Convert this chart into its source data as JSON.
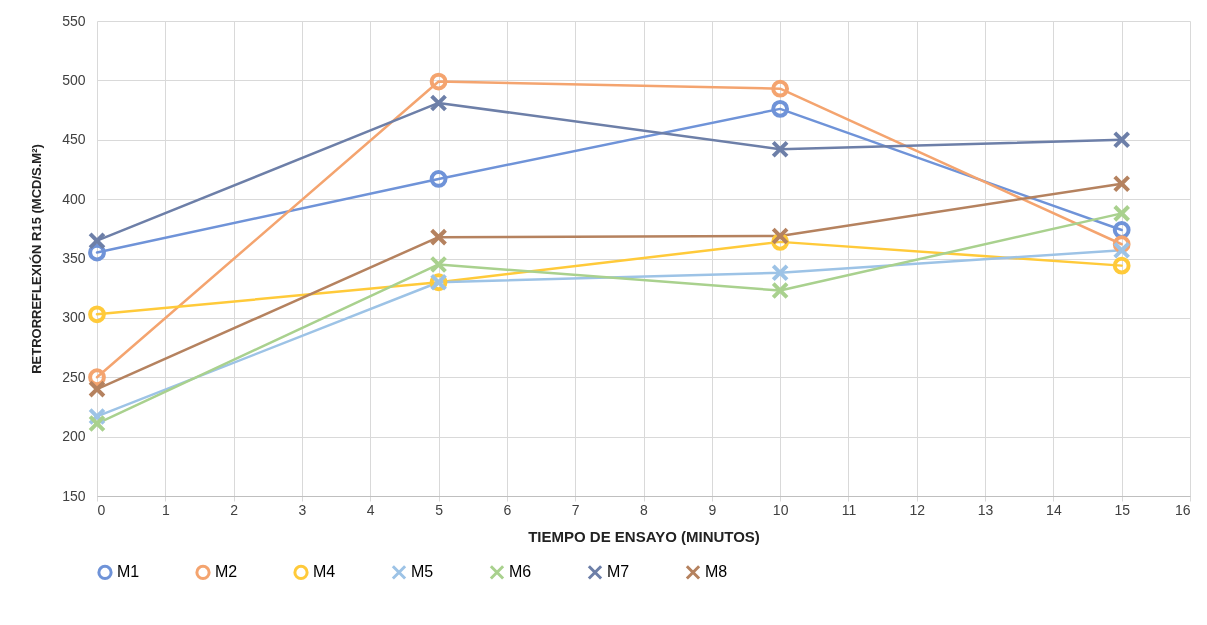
{
  "chart_data": {
    "type": "line",
    "xlabel": "TIEMPO DE ENSAYO (MINUTOS)",
    "ylabel": "RETRORREFLEXIÓN R15 (MCD/S.M²)",
    "x": [
      0,
      5,
      10,
      15
    ],
    "xlim": [
      0,
      16
    ],
    "xticks": [
      0,
      1,
      2,
      3,
      4,
      5,
      6,
      7,
      8,
      9,
      10,
      11,
      12,
      13,
      14,
      15,
      16
    ],
    "ylim": [
      150,
      550
    ],
    "yticks": [
      150,
      200,
      250,
      300,
      350,
      400,
      450,
      500,
      550
    ],
    "grid": true,
    "legend": "bottom",
    "series": [
      {
        "name": "M1",
        "color": "#6f93d8",
        "marker": "circle",
        "values": [
          355,
          417,
          476,
          374
        ]
      },
      {
        "name": "M2",
        "color": "#f4a46f",
        "marker": "circle",
        "values": [
          250,
          499,
          493,
          362
        ]
      },
      {
        "name": "M4",
        "color": "#ffca3a",
        "marker": "circle",
        "values": [
          303,
          330,
          364,
          344
        ]
      },
      {
        "name": "M5",
        "color": "#9dc3e6",
        "marker": "cross",
        "values": [
          217,
          330,
          338,
          357
        ]
      },
      {
        "name": "M6",
        "color": "#a9d18e",
        "marker": "cross",
        "values": [
          211,
          345,
          323,
          388
        ]
      },
      {
        "name": "M7",
        "color": "#6d7fa8",
        "marker": "cross",
        "values": [
          365,
          481,
          442,
          450
        ]
      },
      {
        "name": "M8",
        "color": "#b5825f",
        "marker": "cross",
        "values": [
          240,
          368,
          369,
          413
        ]
      }
    ]
  }
}
